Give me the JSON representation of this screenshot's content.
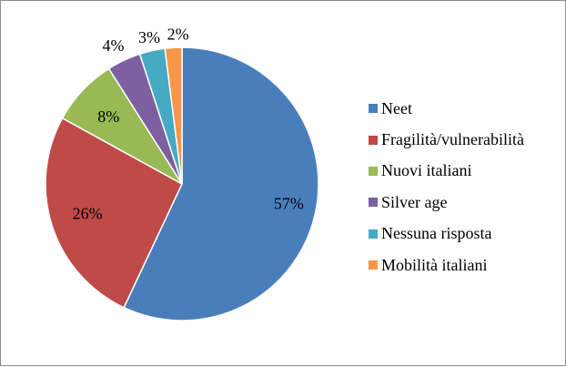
{
  "chart_data": {
    "type": "pie",
    "title": "",
    "categories": [
      "Neet",
      "Fragilità/vulnerabilità",
      "Nuovi italiani",
      "Silver age",
      "Nessuna risposta",
      "Mobilità italiani"
    ],
    "values": [
      57,
      26,
      8,
      4,
      3,
      2
    ],
    "value_labels": [
      "57%",
      "26%",
      "8%",
      "4%",
      "3%",
      "2%"
    ],
    "colors": [
      "#4a7ebb",
      "#be4b48",
      "#98b954",
      "#7d60a0",
      "#46aac5",
      "#f79646"
    ],
    "start_angle_deg": 0,
    "direction": "clockwise",
    "legend": {
      "position": "right"
    }
  }
}
